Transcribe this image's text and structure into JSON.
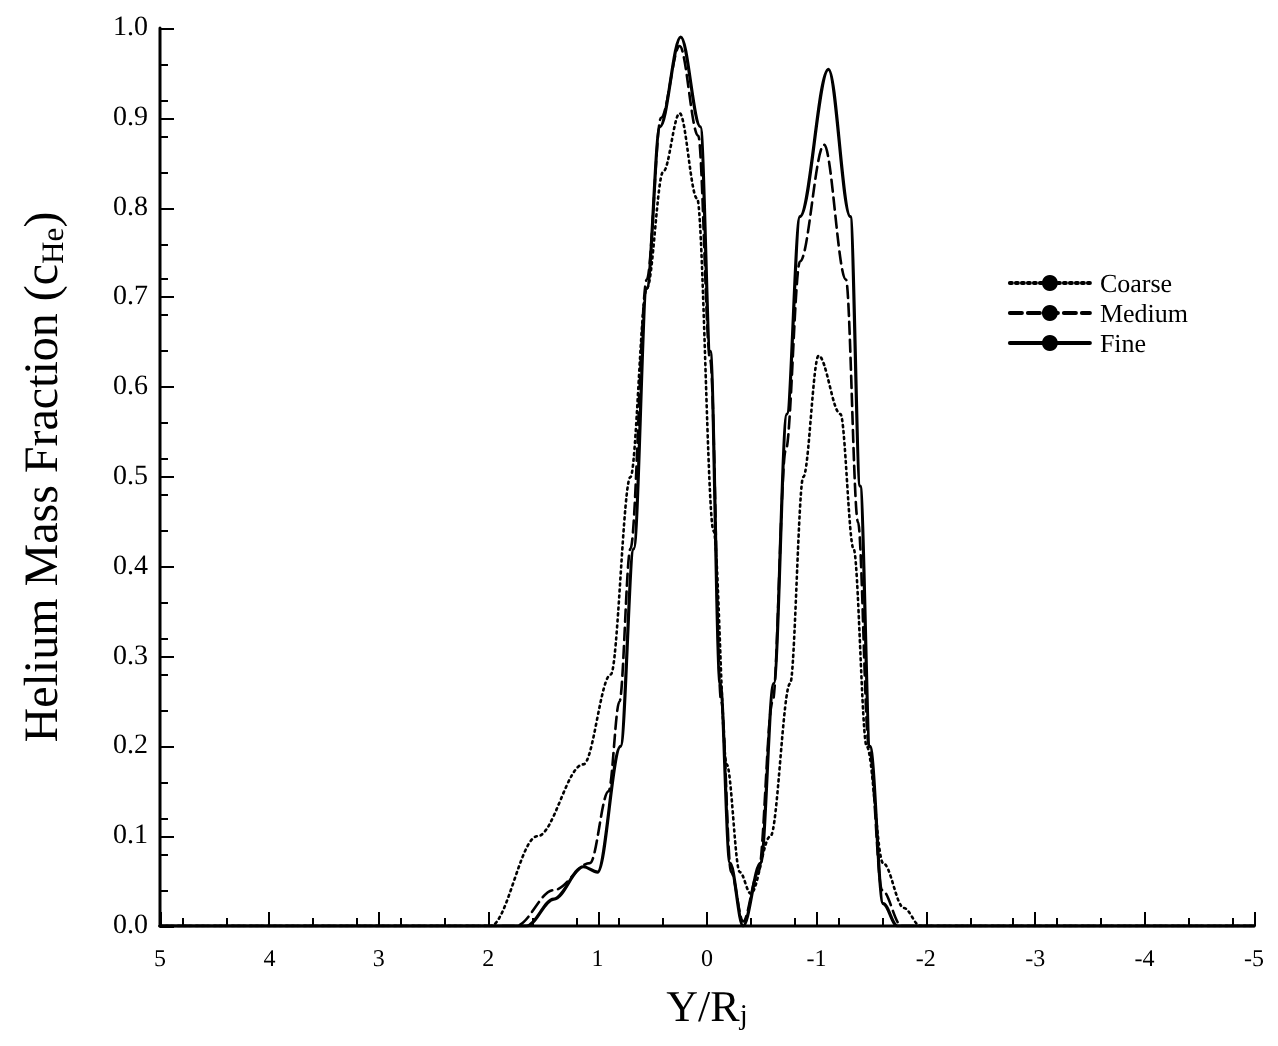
{
  "chart_data": {
    "type": "line",
    "xlabel": "Y/R$_{j}$",
    "ylabel": "Helium Mass Fraction (c$_{He}$)",
    "xlim": [
      5,
      -5
    ],
    "xticks": [
      5,
      4,
      3,
      2,
      1,
      0,
      -1,
      -2,
      -3,
      -4,
      -5
    ],
    "ylim": [
      0,
      1
    ],
    "yticks": [
      {
        "value": 0,
        "label": "0.0"
      },
      0.1,
      0.2,
      0.3,
      0.4,
      0.5,
      0.6,
      0.7,
      0.8,
      0.9,
      {
        "value": 1,
        "label": "1.0"
      }
    ],
    "grid": false,
    "legend": "right",
    "marker": "none",
    "series": [
      {
        "name": "Coarse",
        "color": "#000000",
        "line_style": "dotted",
        "x": [
          5,
          1.98,
          1.55,
          1.13,
          0.88,
          0.7,
          0.55,
          0.4,
          0.25,
          0.09,
          -0.06,
          -0.18,
          -0.3,
          -0.4,
          -0.58,
          -0.76,
          -0.88,
          -1.02,
          -1.22,
          -1.34,
          -1.46,
          -1.61,
          -1.8,
          -1.95,
          -5
        ],
        "values": [
          0,
          0,
          0.1,
          0.18,
          0.28,
          0.5,
          0.71,
          0.84,
          0.905,
          0.81,
          0.44,
          0.18,
          0.06,
          0.036,
          0.1,
          0.27,
          0.5,
          0.635,
          0.57,
          0.42,
          0.2,
          0.07,
          0.02,
          0,
          0
        ]
      },
      {
        "name": "Medium",
        "color": "#000000",
        "line_style": "dashed",
        "x": [
          5,
          1.75,
          1.4,
          1.07,
          0.9,
          0.8,
          0.7,
          0.55,
          0.42,
          0.25,
          0.08,
          -0.03,
          -0.13,
          -0.22,
          -0.33,
          -0.47,
          -0.6,
          -0.72,
          -0.85,
          -1.07,
          -1.27,
          -1.38,
          -1.48,
          -1.6,
          -1.78,
          -5
        ],
        "values": [
          0,
          0,
          0.04,
          0.07,
          0.15,
          0.25,
          0.42,
          0.72,
          0.9,
          0.98,
          0.88,
          0.63,
          0.25,
          0.06,
          0.005,
          0.06,
          0.25,
          0.53,
          0.74,
          0.87,
          0.72,
          0.45,
          0.2,
          0.04,
          0,
          0
        ]
      },
      {
        "name": "Fine",
        "color": "#000000",
        "line_style": "solid",
        "x": [
          5,
          1.65,
          1.4,
          1.13,
          1.0,
          0.79,
          0.67,
          0.55,
          0.43,
          0.24,
          0.06,
          -0.03,
          -0.12,
          -0.21,
          -0.33,
          -0.49,
          -0.61,
          -0.73,
          -0.85,
          -1.11,
          -1.31,
          -1.4,
          -1.49,
          -1.61,
          -1.74,
          -5
        ],
        "values": [
          0,
          0,
          0.03,
          0.066,
          0.06,
          0.2,
          0.42,
          0.71,
          0.89,
          0.99,
          0.89,
          0.64,
          0.27,
          0.07,
          0.0,
          0.07,
          0.27,
          0.57,
          0.79,
          0.954,
          0.79,
          0.49,
          0.2,
          0.025,
          0,
          0
        ]
      }
    ]
  }
}
